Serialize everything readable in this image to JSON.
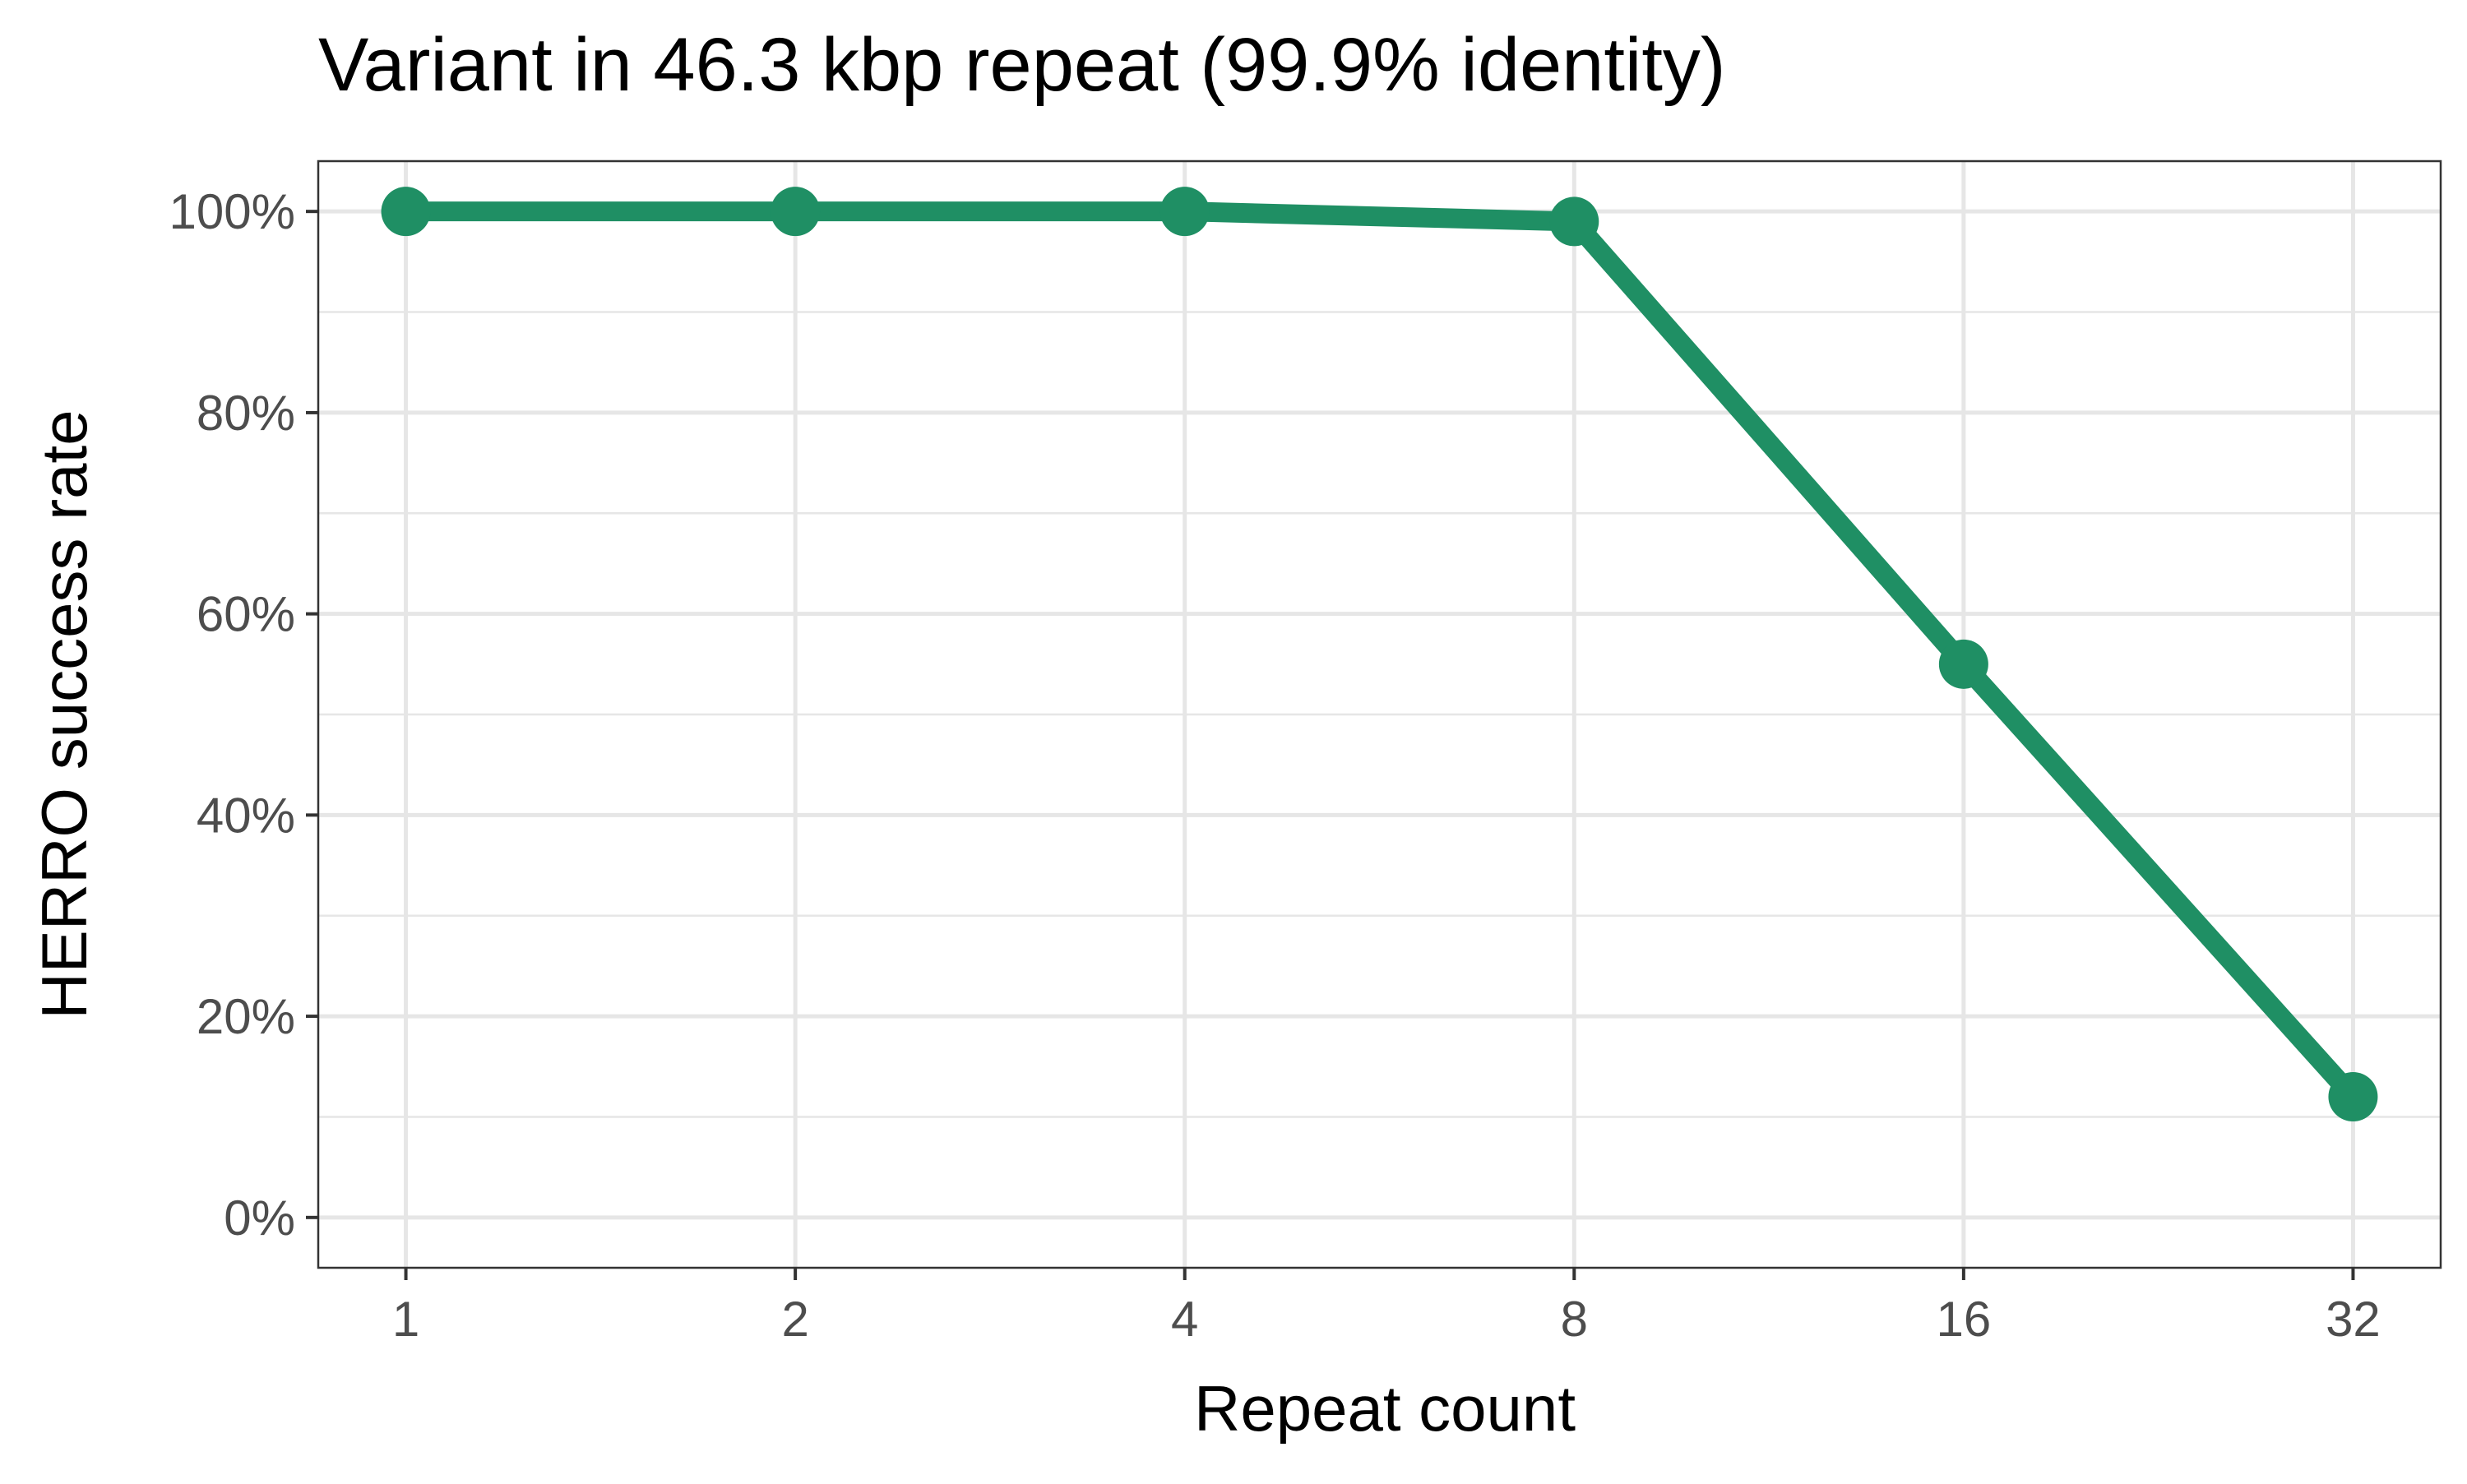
{
  "chart_data": {
    "type": "line",
    "title": "Variant in 46.3 kbp repeat (99.9% identity)",
    "xlabel": "Repeat count",
    "ylabel": "HERRO success rate",
    "x_scale": "log2",
    "categories": [
      "1",
      "2",
      "4",
      "8",
      "16",
      "32"
    ],
    "x": [
      1,
      2,
      4,
      8,
      16,
      32
    ],
    "y_tick_labels": [
      "0%",
      "20%",
      "40%",
      "60%",
      "80%",
      "100%"
    ],
    "y_ticks": [
      0,
      20,
      40,
      60,
      80,
      100
    ],
    "ylim": [
      -5,
      105
    ],
    "grid": true,
    "series": [
      {
        "values": [
          100,
          100,
          100,
          99,
          55,
          12
        ],
        "color": "#1f8f64"
      }
    ],
    "colors": {
      "grid": "#e6e6e6",
      "axis": "#333333",
      "tick_text": "#4d4d4d",
      "text": "#000000"
    }
  }
}
